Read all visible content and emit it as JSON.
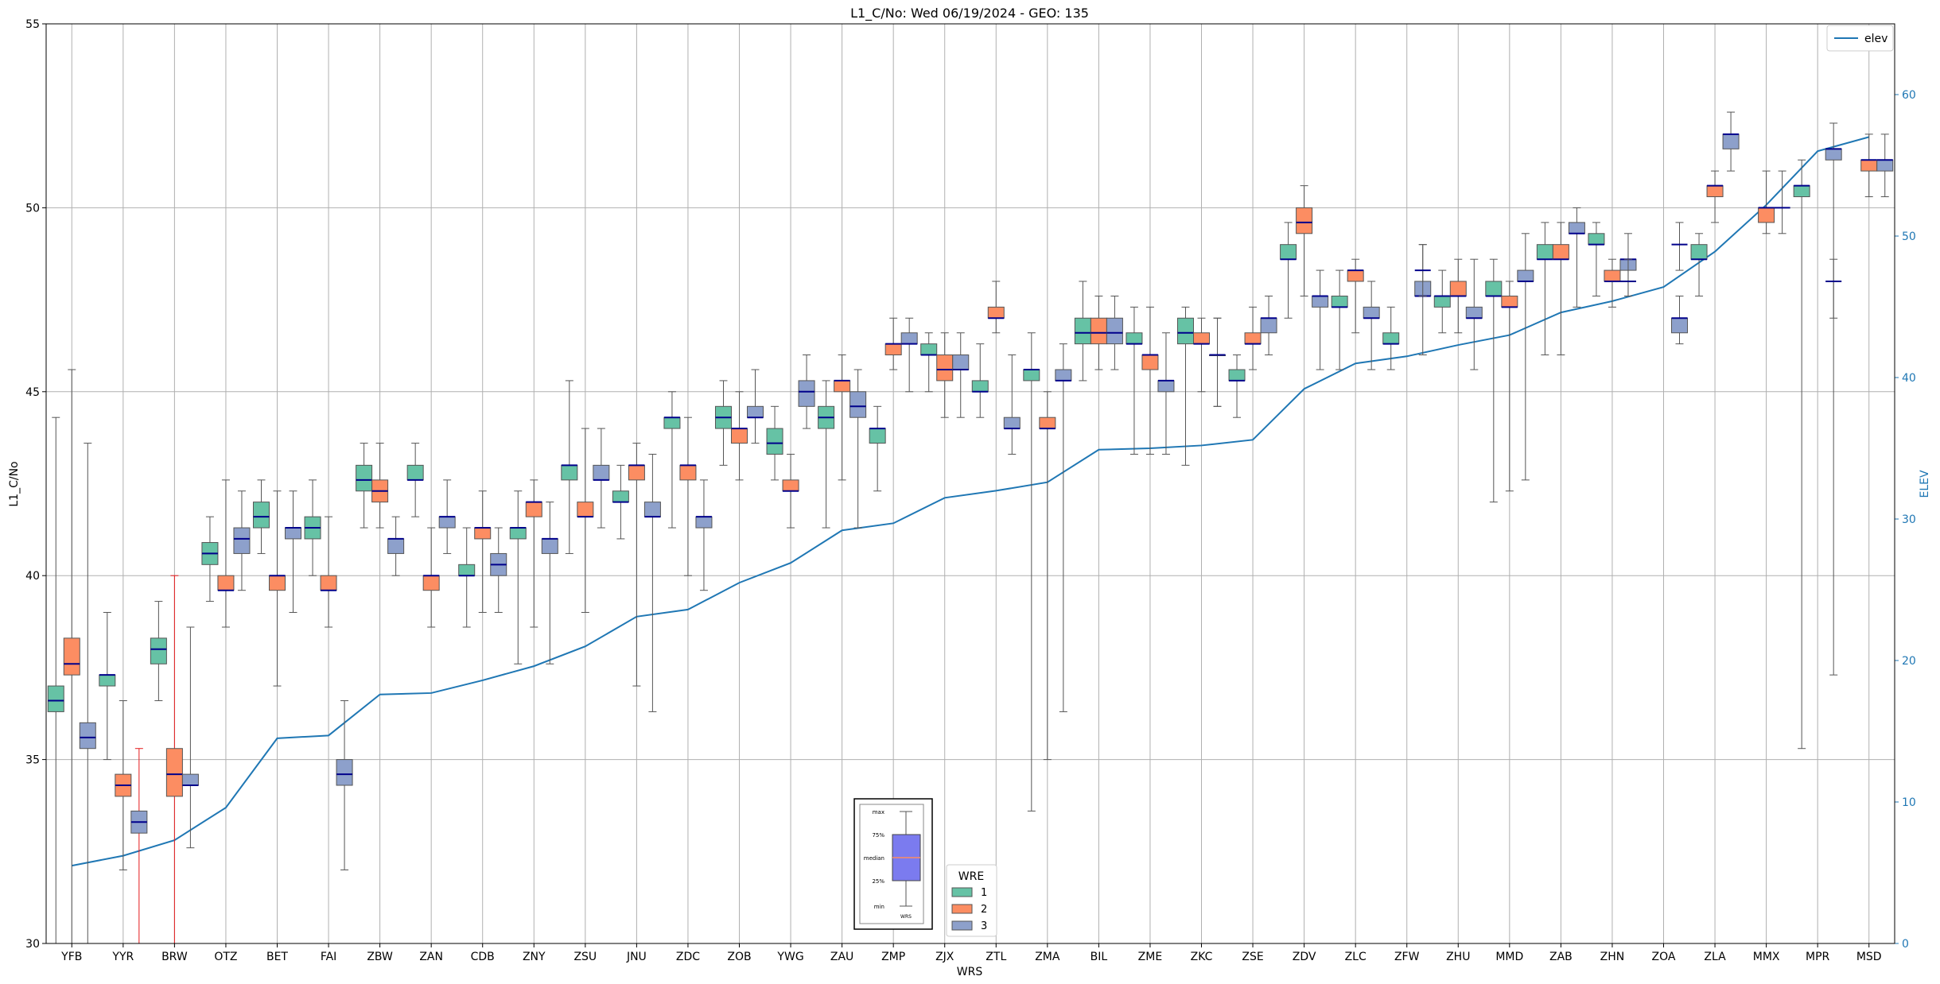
{
  "chart_data": {
    "type": "box",
    "title": "L1_C/No: Wed 06/19/2024 - GEO: 135",
    "xlabel": "WRS",
    "ylabel": "L1_C/No",
    "y2label": "ELEV",
    "ylim": [
      30,
      55
    ],
    "y2lim": [
      0,
      65
    ],
    "yticks": [
      30,
      35,
      40,
      45,
      50,
      55
    ],
    "y2ticks": [
      0,
      10,
      20,
      30,
      40,
      50,
      60
    ],
    "grid": true,
    "colors": {
      "1": "#66c2a5",
      "2": "#fc8d62",
      "3": "#8da0cb",
      "median": "#00008b",
      "elev": "#1f77b4",
      "outlier_whisker": "#e41a1c"
    },
    "categories": [
      "YFB",
      "YYR",
      "BRW",
      "OTZ",
      "BET",
      "FAI",
      "ZBW",
      "ZAN",
      "CDB",
      "ZNY",
      "ZSU",
      "JNU",
      "ZDC",
      "ZOB",
      "YWG",
      "ZAU",
      "ZMP",
      "ZJX",
      "ZTL",
      "ZMA",
      "BIL",
      "ZME",
      "ZKC",
      "ZSE",
      "ZDV",
      "ZLC",
      "ZFW",
      "ZHU",
      "MMD",
      "ZAB",
      "ZHN",
      "ZOA",
      "ZLA",
      "MMX",
      "MPR",
      "MSD"
    ],
    "legend": {
      "title": "WRE",
      "entries": [
        "1",
        "2",
        "3"
      ],
      "line_label": "elev",
      "line_legend_position": "top-right",
      "wre_legend_position": "bottom-center"
    },
    "box_key": {
      "labels": [
        "max",
        "75%",
        "median",
        "25%",
        "min"
      ],
      "caption": "WRS"
    },
    "elev": [
      5.5,
      6.2,
      7.3,
      9.6,
      14.5,
      14.7,
      17.6,
      17.7,
      18.6,
      19.6,
      21.0,
      23.1,
      23.6,
      25.5,
      26.9,
      29.2,
      29.7,
      31.5,
      32.0,
      32.6,
      34.9,
      35.0,
      35.2,
      35.6,
      39.2,
      41.0,
      41.5,
      42.3,
      43.0,
      44.6,
      45.4,
      46.4,
      48.9,
      52.2,
      56.0,
      57.0
    ],
    "series": [
      {
        "name": "1",
        "boxes": [
          [
            0,
            30.0,
            36.3,
            36.6,
            37.0,
            44.3
          ],
          [
            1,
            35.0,
            37.0,
            37.3,
            37.3,
            39.0
          ],
          [
            2,
            36.6,
            37.6,
            38.0,
            38.3,
            39.3
          ],
          [
            3,
            39.3,
            40.3,
            40.6,
            40.9,
            41.6
          ],
          [
            4,
            40.6,
            41.3,
            41.6,
            42.0,
            42.6
          ],
          [
            5,
            40.0,
            41.0,
            41.3,
            41.6,
            42.6
          ],
          [
            6,
            41.3,
            42.3,
            42.6,
            43.0,
            43.6
          ],
          [
            7,
            41.6,
            42.6,
            42.6,
            43.0,
            43.6
          ],
          [
            8,
            38.6,
            40.0,
            40.0,
            40.3,
            41.3
          ],
          [
            9,
            37.6,
            41.0,
            41.3,
            41.3,
            42.3
          ],
          [
            10,
            40.6,
            42.6,
            43.0,
            43.0,
            45.3
          ],
          [
            11,
            41.0,
            42.0,
            42.0,
            42.3,
            43.0
          ],
          [
            12,
            41.3,
            44.0,
            44.3,
            44.3,
            45.0
          ],
          [
            13,
            43.0,
            44.0,
            44.3,
            44.6,
            45.3
          ],
          [
            14,
            42.6,
            43.3,
            43.6,
            44.0,
            44.6
          ],
          [
            15,
            41.3,
            44.0,
            44.3,
            44.6,
            45.3
          ],
          [
            16,
            42.3,
            43.6,
            44.0,
            44.0,
            44.6
          ],
          [
            17,
            45.0,
            46.0,
            46.0,
            46.3,
            46.6
          ],
          [
            18,
            44.3,
            45.0,
            45.0,
            45.3,
            46.3
          ],
          [
            19,
            33.6,
            45.3,
            45.6,
            45.6,
            46.6
          ],
          [
            20,
            45.3,
            46.3,
            46.6,
            47.0,
            48.0
          ],
          [
            21,
            43.3,
            46.3,
            46.3,
            46.6,
            47.3
          ],
          [
            22,
            43.0,
            46.3,
            46.6,
            47.0,
            47.3
          ],
          [
            23,
            44.3,
            45.3,
            45.3,
            45.6,
            46.0
          ],
          [
            24,
            47.0,
            48.6,
            48.6,
            49.0,
            49.6
          ],
          [
            25,
            45.6,
            47.3,
            47.3,
            47.6,
            48.3
          ],
          [
            26,
            45.6,
            46.3,
            46.3,
            46.6,
            47.3
          ],
          [
            27,
            46.6,
            47.3,
            47.6,
            47.6,
            48.3
          ],
          [
            28,
            42.0,
            47.6,
            47.6,
            48.0,
            48.6
          ],
          [
            29,
            46.0,
            48.6,
            48.6,
            49.0,
            49.6
          ],
          [
            30,
            47.6,
            49.0,
            49.0,
            49.3,
            49.6
          ],
          [
            32,
            47.6,
            48.6,
            48.6,
            49.0,
            49.3
          ],
          [
            34,
            35.3,
            50.3,
            50.6,
            50.6,
            51.3
          ]
        ]
      },
      {
        "name": "2",
        "boxes": [
          [
            0,
            30.0,
            37.3,
            37.6,
            38.3,
            45.6
          ],
          [
            1,
            32.0,
            34.0,
            34.3,
            34.6,
            36.6
          ],
          [
            2,
            30.0,
            34.0,
            34.6,
            35.3,
            40.0
          ],
          [
            3,
            38.6,
            39.6,
            39.6,
            40.0,
            42.6
          ],
          [
            4,
            37.0,
            39.6,
            40.0,
            40.0,
            42.3
          ],
          [
            5,
            38.6,
            39.6,
            39.6,
            40.0,
            41.6
          ],
          [
            6,
            41.3,
            42.0,
            42.3,
            42.6,
            43.6
          ],
          [
            7,
            38.6,
            39.6,
            40.0,
            40.0,
            41.3
          ],
          [
            8,
            39.0,
            41.0,
            41.3,
            41.3,
            42.3
          ],
          [
            9,
            38.6,
            41.6,
            42.0,
            42.0,
            42.6
          ],
          [
            10,
            39.0,
            41.6,
            41.6,
            42.0,
            44.0
          ],
          [
            11,
            37.0,
            42.6,
            43.0,
            43.0,
            43.6
          ],
          [
            12,
            40.0,
            42.6,
            43.0,
            43.0,
            44.3
          ],
          [
            13,
            42.6,
            43.6,
            44.0,
            44.0,
            45.0
          ],
          [
            14,
            41.3,
            42.3,
            42.3,
            42.6,
            43.3
          ],
          [
            15,
            42.6,
            45.0,
            45.3,
            45.3,
            46.0
          ],
          [
            16,
            45.6,
            46.0,
            46.3,
            46.3,
            47.0
          ],
          [
            17,
            44.3,
            45.3,
            45.6,
            46.0,
            46.6
          ],
          [
            18,
            46.6,
            47.0,
            47.0,
            47.3,
            48.0
          ],
          [
            19,
            35.0,
            44.0,
            44.0,
            44.3,
            45.0
          ],
          [
            20,
            45.6,
            46.3,
            46.6,
            47.0,
            47.6
          ],
          [
            21,
            43.3,
            45.6,
            46.0,
            46.0,
            47.3
          ],
          [
            22,
            45.0,
            46.3,
            46.3,
            46.6,
            47.0
          ],
          [
            23,
            45.6,
            46.3,
            46.3,
            46.6,
            47.3
          ],
          [
            24,
            47.6,
            49.3,
            49.6,
            50.0,
            50.6
          ],
          [
            25,
            46.6,
            48.0,
            48.3,
            48.3,
            48.6
          ],
          [
            27,
            46.6,
            47.6,
            47.6,
            48.0,
            48.6
          ],
          [
            28,
            42.3,
            47.3,
            47.3,
            47.6,
            48.0
          ],
          [
            29,
            46.0,
            48.6,
            48.6,
            49.0,
            49.6
          ],
          [
            30,
            47.3,
            48.0,
            48.0,
            48.3,
            48.6
          ],
          [
            32,
            49.6,
            50.3,
            50.6,
            50.6,
            51.0
          ],
          [
            33,
            49.3,
            49.6,
            50.0,
            50.0,
            51.0
          ],
          [
            35,
            50.3,
            51.0,
            51.3,
            51.3,
            52.0
          ]
        ]
      },
      {
        "name": "3",
        "boxes": [
          [
            0,
            30.0,
            35.3,
            35.6,
            36.0,
            43.6
          ],
          [
            1,
            30.0,
            33.0,
            33.3,
            33.6,
            35.3
          ],
          [
            2,
            32.6,
            34.3,
            34.3,
            34.6,
            38.6
          ],
          [
            3,
            39.6,
            40.6,
            41.0,
            41.3,
            42.3
          ],
          [
            4,
            39.0,
            41.0,
            41.3,
            41.3,
            42.3
          ],
          [
            5,
            32.0,
            34.3,
            34.6,
            35.0,
            36.6
          ],
          [
            6,
            40.0,
            40.6,
            41.0,
            41.0,
            41.6
          ],
          [
            7,
            40.6,
            41.3,
            41.6,
            41.6,
            42.6
          ],
          [
            8,
            39.0,
            40.0,
            40.3,
            40.6,
            41.3
          ],
          [
            9,
            37.6,
            40.6,
            41.0,
            41.0,
            42.0
          ],
          [
            10,
            41.3,
            42.6,
            42.6,
            43.0,
            44.0
          ],
          [
            11,
            36.3,
            41.6,
            41.6,
            42.0,
            43.3
          ],
          [
            12,
            39.6,
            41.3,
            41.6,
            41.6,
            42.6
          ],
          [
            13,
            43.6,
            44.3,
            44.3,
            44.6,
            45.6
          ],
          [
            14,
            44.0,
            44.6,
            45.0,
            45.3,
            46.0
          ],
          [
            15,
            41.3,
            44.3,
            44.6,
            45.0,
            45.6
          ],
          [
            16,
            45.0,
            46.3,
            46.3,
            46.6,
            47.0
          ],
          [
            17,
            44.3,
            45.6,
            45.6,
            46.0,
            46.6
          ],
          [
            18,
            43.3,
            44.0,
            44.0,
            44.3,
            46.0
          ],
          [
            19,
            36.3,
            45.3,
            45.3,
            45.6,
            46.3
          ],
          [
            20,
            45.6,
            46.3,
            46.6,
            47.0,
            47.6
          ],
          [
            21,
            43.3,
            45.0,
            45.3,
            45.3,
            46.6
          ],
          [
            22,
            44.6,
            46.0,
            46.0,
            46.0,
            47.0
          ],
          [
            23,
            46.0,
            46.6,
            47.0,
            47.0,
            47.6
          ],
          [
            24,
            45.6,
            47.3,
            47.6,
            47.6,
            48.3
          ],
          [
            25,
            45.6,
            47.0,
            47.0,
            47.3,
            48.0
          ],
          [
            26,
            46.0,
            47.6,
            47.6,
            48.0,
            49.0
          ],
          [
            27,
            45.6,
            47.0,
            47.0,
            47.3,
            48.6
          ],
          [
            28,
            42.6,
            48.0,
            48.0,
            48.3,
            49.3
          ],
          [
            29,
            47.3,
            49.3,
            49.3,
            49.6,
            50.0
          ],
          [
            30,
            47.6,
            48.3,
            48.6,
            48.6,
            49.3
          ],
          [
            31,
            46.3,
            46.6,
            47.0,
            47.0,
            47.6
          ],
          [
            32,
            51.0,
            51.6,
            52.0,
            52.0,
            52.6
          ],
          [
            34,
            37.3,
            51.3,
            51.6,
            51.6,
            52.3
          ],
          [
            35,
            50.3,
            51.0,
            51.3,
            51.3,
            52.0
          ]
        ]
      }
    ],
    "median_only": [
      {
        "series": "3",
        "index": 26,
        "value": 48.3,
        "whisker": [
          47.6,
          49.0
        ]
      },
      {
        "series": "3",
        "index": 31,
        "value": 49.0,
        "whisker": [
          48.3,
          49.6
        ]
      },
      {
        "series": "3",
        "index": 33,
        "value": 50.0,
        "whisker": [
          49.3,
          51.0
        ]
      },
      {
        "series": "3",
        "index": 34,
        "value": 48.0,
        "whisker": [
          47.0,
          48.6
        ]
      },
      {
        "series": "3",
        "index": 30,
        "value": 48.0,
        "whisker": [
          47.6,
          48.6
        ]
      },
      {
        "series": "3",
        "index": 22,
        "value": 46.0,
        "whisker": [
          44.6,
          47.0
        ]
      }
    ]
  }
}
